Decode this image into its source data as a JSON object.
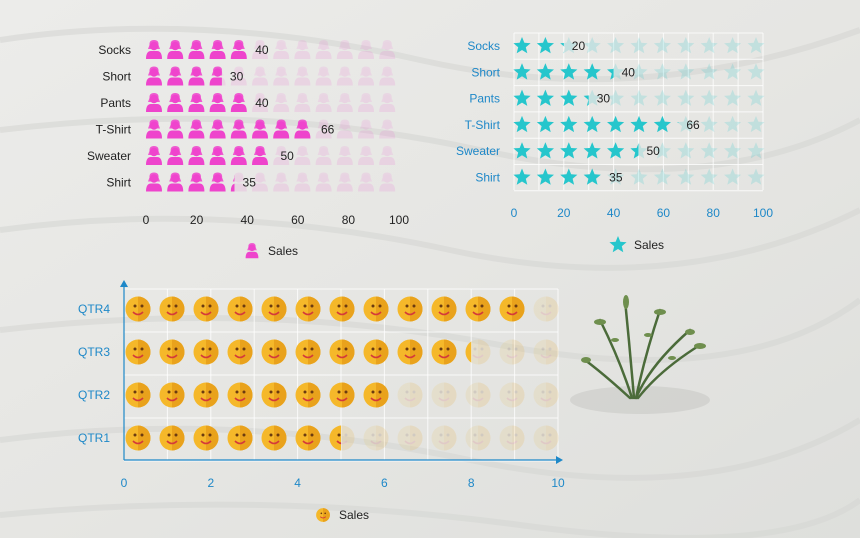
{
  "chart_data": [
    {
      "type": "pictorial-bar",
      "icon": "person-icon",
      "color": "#ee44cc",
      "categories": [
        "Socks",
        "Short",
        "Pants",
        "T-Shirt",
        "Sweater",
        "Shirt"
      ],
      "values": [
        40,
        30,
        40,
        66,
        50,
        35
      ],
      "xlim": [
        0,
        100
      ],
      "xticks": [
        "0",
        "20",
        "40",
        "60",
        "80",
        "100"
      ],
      "legend": {
        "label": "Sales",
        "position": "bottom"
      },
      "grid": false
    },
    {
      "type": "pictorial-bar",
      "icon": "star-icon",
      "color": "#26c6cc",
      "axis_color": "#1e88c8",
      "categories": [
        "Socks",
        "Short",
        "Pants",
        "T-Shirt",
        "Sweater",
        "Shirt"
      ],
      "values": [
        20,
        40,
        30,
        66,
        50,
        35
      ],
      "xlim": [
        0,
        100
      ],
      "xticks": [
        "0",
        "20",
        "40",
        "60",
        "80",
        "100"
      ],
      "legend": {
        "label": "Sales",
        "position": "bottom"
      },
      "grid": true
    },
    {
      "type": "pictorial-bar",
      "icon": "smiley-icon",
      "color": "#f5b82a",
      "axis_color": "#1e88c8",
      "categories": [
        "QTR4",
        "QTR3",
        "QTR2",
        "QTR1"
      ],
      "values": [
        9.25,
        8.0,
        6.3,
        5.0
      ],
      "xlim": [
        0,
        10
      ],
      "xticks": [
        "0",
        "2",
        "4",
        "6",
        "8",
        "10"
      ],
      "legend": {
        "label": "Sales",
        "position": "bottom"
      },
      "grid": true
    }
  ]
}
